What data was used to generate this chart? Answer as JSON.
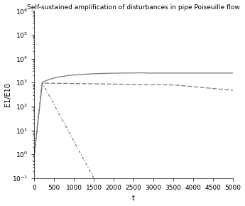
{
  "title": "Self-sustained amplification of disturbances in pipe Poiseuille flow",
  "xlabel": "t",
  "ylabel": "E1/E10",
  "xlim": [
    0,
    5000
  ],
  "ylim": [
    0.1,
    1000000.0
  ],
  "xticks": [
    0,
    500,
    1000,
    1500,
    2000,
    2500,
    3000,
    3500,
    4000,
    4500,
    5000
  ],
  "line_color": "#777777",
  "title_fontsize": 6.5,
  "label_fontsize": 7,
  "tick_fontsize": 6.5,
  "linewidth": 0.9
}
